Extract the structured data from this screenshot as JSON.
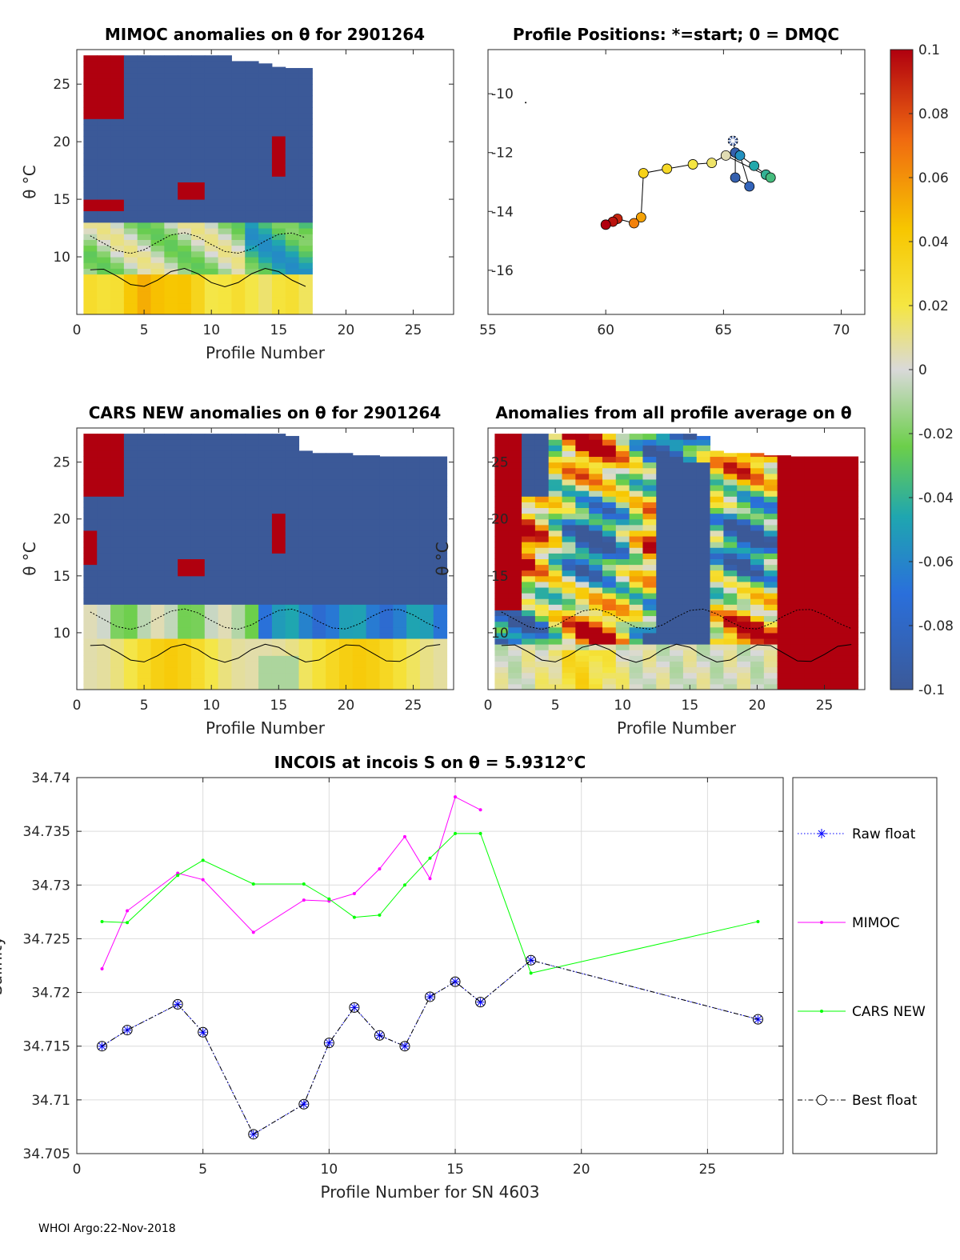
{
  "chart_data": [
    {
      "id": "mimoc",
      "type": "heatmap",
      "title": "MIMOC anomalies on θ  for 2901264",
      "xlabel": "Profile Number",
      "ylabel": "θ °C",
      "xlim": [
        0,
        28
      ],
      "ylim": [
        5,
        28
      ],
      "xticks": [
        "0",
        "5",
        "10",
        "15",
        "20",
        "25"
      ],
      "yticks": [
        "10",
        "15",
        "20",
        "25"
      ]
    },
    {
      "id": "positions",
      "type": "scatter",
      "title": "Profile Positions: *=start; 0 = DMQC",
      "xlim": [
        55,
        71
      ],
      "ylim": [
        -17.5,
        -8.5
      ],
      "xticks": [
        "55",
        "60",
        "65",
        "70"
      ],
      "yticks": [
        "-10",
        "-12",
        "-14",
        "-16"
      ],
      "points": [
        {
          "lon": 65.4,
          "lat": -11.6,
          "v": -0.1
        },
        {
          "lon": 65.5,
          "lat": -12.0,
          "v": -0.09
        },
        {
          "lon": 65.5,
          "lat": -12.85,
          "v": -0.09
        },
        {
          "lon": 66.1,
          "lat": -13.15,
          "v": -0.085
        },
        {
          "lon": 65.7,
          "lat": -12.1,
          "v": -0.055
        },
        {
          "lon": 66.3,
          "lat": -12.45,
          "v": -0.045
        },
        {
          "lon": 66.8,
          "lat": -12.75,
          "v": -0.04
        },
        {
          "lon": 67.0,
          "lat": -12.85,
          "v": -0.035
        },
        {
          "lon": 65.1,
          "lat": -12.1,
          "v": 0.005
        },
        {
          "lon": 64.5,
          "lat": -12.35,
          "v": 0.015
        },
        {
          "lon": 63.7,
          "lat": -12.4,
          "v": 0.02
        },
        {
          "lon": 62.6,
          "lat": -12.55,
          "v": 0.03
        },
        {
          "lon": 61.6,
          "lat": -12.7,
          "v": 0.035
        },
        {
          "lon": 61.5,
          "lat": -14.2,
          "v": 0.055
        },
        {
          "lon": 61.2,
          "lat": -14.4,
          "v": 0.065
        },
        {
          "lon": 60.5,
          "lat": -14.25,
          "v": 0.09
        },
        {
          "lon": 60.3,
          "lat": -14.35,
          "v": 0.095
        },
        {
          "lon": 60.0,
          "lat": -14.45,
          "v": 0.1
        }
      ]
    },
    {
      "id": "cars",
      "type": "heatmap",
      "title": "CARS NEW anomalies on θ for 2901264",
      "xlabel": "Profile Number",
      "ylabel": "θ °C",
      "xlim": [
        0,
        28
      ],
      "ylim": [
        5,
        28
      ],
      "xticks": [
        "0",
        "5",
        "10",
        "15",
        "20",
        "25"
      ],
      "yticks": [
        "10",
        "15",
        "20",
        "25"
      ]
    },
    {
      "id": "avg",
      "type": "heatmap",
      "title": "Anomalies from all profile average on θ",
      "xlabel": "Profile Number",
      "ylabel": "θ °C",
      "xlim": [
        0,
        28
      ],
      "ylim": [
        5,
        28
      ],
      "xticks": [
        "0",
        "5",
        "10",
        "15",
        "20",
        "25"
      ],
      "yticks": [
        "10",
        "15",
        "20",
        "25"
      ]
    },
    {
      "id": "colorbar",
      "type": "colorbar",
      "range": [
        -0.1,
        0.1
      ],
      "ticks": [
        "0.1",
        "0.08",
        "0.06",
        "0.04",
        "0.02",
        "0",
        "-0.02",
        "-0.04",
        "-0.06",
        "-0.08",
        "-0.1"
      ]
    },
    {
      "id": "salinity",
      "type": "line",
      "title": "INCOIS at incois S on θ = 5.9312°C",
      "xlabel": "Profile Number for SN 4603",
      "ylabel": "Salinity",
      "xlim": [
        0,
        28
      ],
      "ylim": [
        34.705,
        34.74
      ],
      "xticks": [
        "0",
        "5",
        "10",
        "15",
        "20",
        "25"
      ],
      "yticks": [
        "34.74",
        "34.735",
        "34.73",
        "34.725",
        "34.72",
        "34.715",
        "34.71",
        "34.705"
      ],
      "series": [
        {
          "name": "MIMOC",
          "color": "#ff00ff",
          "x": [
            1,
            2,
            4,
            5,
            7,
            9,
            10,
            11,
            12,
            13,
            14,
            15,
            16
          ],
          "y": [
            34.7222,
            34.7276,
            34.7311,
            34.7305,
            34.7256,
            34.7286,
            34.7285,
            34.7292,
            34.7315,
            34.7345,
            34.7306,
            34.7382,
            34.737
          ]
        },
        {
          "name": "CARS NEW",
          "color": "#00ff00",
          "x": [
            1,
            2,
            4,
            5,
            7,
            9,
            10,
            11,
            12,
            13,
            14,
            15,
            16,
            18,
            27
          ],
          "y": [
            34.7266,
            34.7265,
            34.7309,
            34.7323,
            34.7301,
            34.7301,
            34.7287,
            34.727,
            34.7272,
            34.73,
            34.7325,
            34.7348,
            34.7348,
            34.7218,
            34.7266
          ]
        },
        {
          "name": "Raw float",
          "color": "#0000ff",
          "x": [
            1,
            2,
            4,
            5,
            7,
            9,
            10,
            11,
            12,
            13,
            14,
            15,
            16,
            18,
            27
          ],
          "y": [
            34.715,
            34.7165,
            34.7189,
            34.7163,
            34.7068,
            34.7096,
            34.7153,
            34.7186,
            34.716,
            34.715,
            34.7196,
            34.721,
            34.7191,
            34.723,
            34.7175
          ]
        },
        {
          "name": "Best float",
          "color": "#000000",
          "x": [
            1,
            2,
            4,
            5,
            7,
            9,
            10,
            11,
            12,
            13,
            14,
            15,
            16,
            18,
            27
          ],
          "y": [
            34.715,
            34.7165,
            34.7189,
            34.7163,
            34.7068,
            34.7096,
            34.7153,
            34.7186,
            34.716,
            34.715,
            34.7196,
            34.721,
            34.7191,
            34.723,
            34.7175
          ]
        }
      ],
      "legend": [
        "Raw float",
        "MIMOC",
        "CARS NEW",
        "Best float"
      ]
    }
  ],
  "footer": "WHOI Argo:22-Nov-2018"
}
